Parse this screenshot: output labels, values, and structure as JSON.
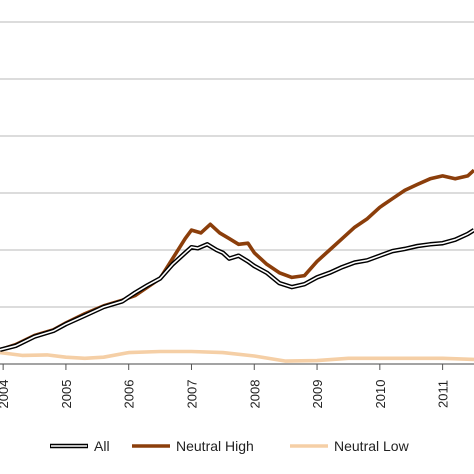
{
  "chart_data": {
    "type": "line",
    "title": "",
    "xlabel": "",
    "ylabel": "",
    "x_tick_labels": [
      "2004",
      "2005",
      "2006",
      "2007",
      "2008",
      "2009",
      "2010",
      "2011"
    ],
    "xlim": [
      2003.95,
      2011.5
    ],
    "ylim": [
      0,
      6
    ],
    "grid": true,
    "legend_position": "bottom",
    "series": [
      {
        "name": "All",
        "color": "#000000",
        "style": "double",
        "x": [
          2003.95,
          2004.2,
          2004.5,
          2004.8,
          2005.0,
          2005.3,
          2005.6,
          2005.9,
          2006.1,
          2006.3,
          2006.5,
          2006.7,
          2006.9,
          2007.0,
          2007.1,
          2007.25,
          2007.4,
          2007.5,
          2007.6,
          2007.75,
          2007.9,
          2008.0,
          2008.2,
          2008.4,
          2008.6,
          2008.8,
          2009.0,
          2009.2,
          2009.4,
          2009.6,
          2009.8,
          2010.0,
          2010.2,
          2010.4,
          2010.6,
          2010.8,
          2011.0,
          2011.2,
          2011.4,
          2011.5
        ],
        "y": [
          0.25,
          0.32,
          0.48,
          0.58,
          0.7,
          0.85,
          1.0,
          1.1,
          1.25,
          1.38,
          1.5,
          1.75,
          1.95,
          2.05,
          2.03,
          2.1,
          2.0,
          1.95,
          1.85,
          1.9,
          1.8,
          1.72,
          1.6,
          1.42,
          1.35,
          1.4,
          1.52,
          1.6,
          1.7,
          1.78,
          1.82,
          1.9,
          1.98,
          2.02,
          2.07,
          2.1,
          2.12,
          2.18,
          2.28,
          2.35
        ]
      },
      {
        "name": "Neutral High",
        "color": "#8b3e0b",
        "style": "thick",
        "x": [
          2003.95,
          2004.2,
          2004.5,
          2004.8,
          2005.0,
          2005.3,
          2005.6,
          2005.9,
          2006.1,
          2006.3,
          2006.5,
          2006.7,
          2006.9,
          2007.0,
          2007.15,
          2007.3,
          2007.45,
          2007.6,
          2007.75,
          2007.9,
          2008.0,
          2008.2,
          2008.4,
          2008.6,
          2008.8,
          2009.0,
          2009.2,
          2009.4,
          2009.6,
          2009.8,
          2010.0,
          2010.2,
          2010.4,
          2010.6,
          2010.8,
          2011.0,
          2011.2,
          2011.4,
          2011.5
        ],
        "y": [
          0.25,
          0.34,
          0.5,
          0.6,
          0.72,
          0.88,
          1.02,
          1.12,
          1.2,
          1.35,
          1.5,
          1.85,
          2.2,
          2.35,
          2.3,
          2.45,
          2.3,
          2.2,
          2.1,
          2.12,
          1.95,
          1.75,
          1.6,
          1.52,
          1.55,
          1.8,
          2.0,
          2.2,
          2.4,
          2.55,
          2.75,
          2.9,
          3.05,
          3.15,
          3.25,
          3.3,
          3.25,
          3.3,
          3.4
        ]
      },
      {
        "name": "Neutral Low",
        "color": "#f5cfa6",
        "style": "thick",
        "x": [
          2003.95,
          2004.3,
          2004.7,
          2005.0,
          2005.3,
          2005.6,
          2006.0,
          2006.5,
          2007.0,
          2007.5,
          2008.0,
          2008.5,
          2009.0,
          2009.5,
          2010.0,
          2010.5,
          2011.0,
          2011.5
        ],
        "y": [
          0.2,
          0.15,
          0.16,
          0.12,
          0.1,
          0.12,
          0.2,
          0.22,
          0.22,
          0.2,
          0.14,
          0.05,
          0.06,
          0.1,
          0.1,
          0.1,
          0.1,
          0.08
        ]
      }
    ]
  }
}
